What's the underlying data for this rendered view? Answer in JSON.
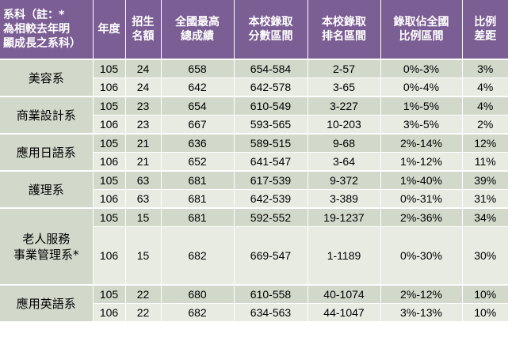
{
  "header": {
    "department": [
      "系科（註：*",
      "為相較去年明",
      "顯成長之系科）"
    ],
    "year": [
      "年度"
    ],
    "quota": [
      "招生",
      "名額"
    ],
    "top_score": [
      "全國最高",
      "總成績"
    ],
    "score_range": [
      "本校錄取",
      "分數區間"
    ],
    "rank_range": [
      "本校錄取",
      "排名區間"
    ],
    "ratio_range": [
      "錄取佔全國",
      "比例區間"
    ],
    "ratio_diff": [
      "比例",
      "差距"
    ]
  },
  "groups": [
    {
      "department": [
        "美容系"
      ],
      "rows": [
        {
          "year": "105",
          "quota": "24",
          "top_score": "658",
          "score_range": "654-584",
          "rank_range": "2-57",
          "ratio_range": "0%-3%",
          "ratio_diff": "3%"
        },
        {
          "year": "106",
          "quota": "24",
          "top_score": "642",
          "score_range": "642-578",
          "rank_range": "3-65",
          "ratio_range": "0%-4%",
          "ratio_diff": "4%"
        }
      ]
    },
    {
      "department": [
        "商業設計系"
      ],
      "rows": [
        {
          "year": "105",
          "quota": "23",
          "top_score": "654",
          "score_range": "610-549",
          "rank_range": "3-227",
          "ratio_range": "1%-5%",
          "ratio_diff": "4%"
        },
        {
          "year": "106",
          "quota": "23",
          "top_score": "667",
          "score_range": "593-565",
          "rank_range": "10-203",
          "ratio_range": "3%-5%",
          "ratio_diff": "2%"
        }
      ]
    },
    {
      "department": [
        "應用日語系"
      ],
      "rows": [
        {
          "year": "105",
          "quota": "21",
          "top_score": "636",
          "score_range": "589-515",
          "rank_range": "9-68",
          "ratio_range": "2%-14%",
          "ratio_diff": "12%"
        },
        {
          "year": "106",
          "quota": "21",
          "top_score": "652",
          "score_range": "641-547",
          "rank_range": "3-64",
          "ratio_range": "1%-12%",
          "ratio_diff": "11%"
        }
      ]
    },
    {
      "department": [
        "護理系"
      ],
      "rows": [
        {
          "year": "105",
          "quota": "63",
          "top_score": "681",
          "score_range": "617-539",
          "rank_range": "9-372",
          "ratio_range": "1%-40%",
          "ratio_diff": "39%"
        },
        {
          "year": "106",
          "quota": "63",
          "top_score": "681",
          "score_range": "642-539",
          "rank_range": "3-389",
          "ratio_range": "0%-31%",
          "ratio_diff": "31%"
        }
      ]
    },
    {
      "department": [
        "老人服務",
        "事業管理系*"
      ],
      "rows": [
        {
          "year": "105",
          "quota": "15",
          "top_score": "681",
          "score_range": "592-552",
          "rank_range": "19-1237",
          "ratio_range": "2%-36%",
          "ratio_diff": "34%"
        },
        {
          "year": "106",
          "quota": "15",
          "top_score": "682",
          "score_range": "669-547",
          "rank_range": "1-1189",
          "ratio_range": "0%-30%",
          "ratio_diff": "30%"
        }
      ]
    },
    {
      "department": [
        "應用英語系"
      ],
      "rows": [
        {
          "year": "105",
          "quota": "22",
          "top_score": "680",
          "score_range": "610-558",
          "rank_range": "40-1074",
          "ratio_range": "2%-12%",
          "ratio_diff": "10%"
        },
        {
          "year": "106",
          "quota": "22",
          "top_score": "682",
          "score_range": "634-563",
          "rank_range": "44-1047",
          "ratio_range": "3%-13%",
          "ratio_diff": "10%"
        }
      ]
    }
  ],
  "colors": {
    "header_bg": "#7b5e94",
    "header_text": "#ffffff",
    "row_dark": "#d2d9ca",
    "row_light": "#e8ebe2"
  }
}
